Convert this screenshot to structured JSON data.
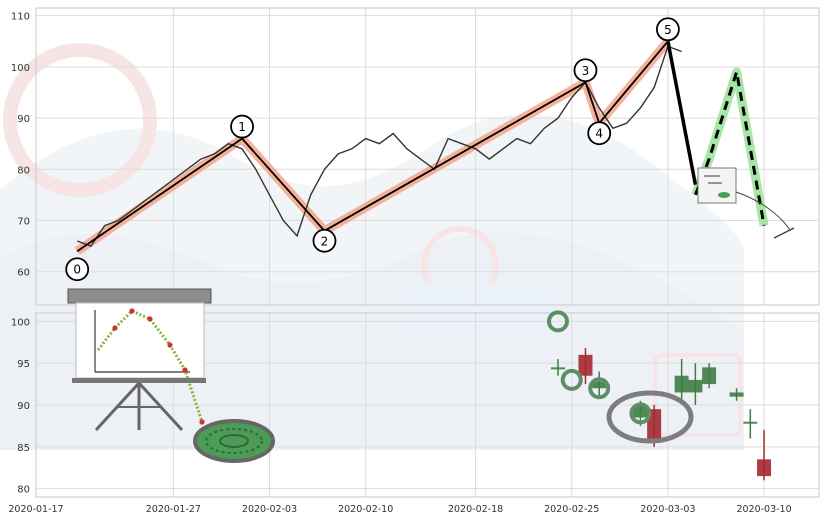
{
  "chart_data": [
    {
      "type": "line",
      "panel": "upper",
      "title": "",
      "xlabel": "",
      "ylabel": "",
      "ylim": [
        53.5,
        111.5
      ],
      "yticks": [
        60,
        70,
        80,
        90,
        100,
        110
      ],
      "grid": true,
      "series": [
        {
          "role": "price",
          "color": "#333333",
          "x": [
            "2020-01-20",
            "2020-01-21",
            "2020-01-22",
            "2020-01-23",
            "2020-01-24",
            "2020-01-25",
            "2020-01-26",
            "2020-01-27",
            "2020-01-28",
            "2020-01-29",
            "2020-01-30",
            "2020-01-31",
            "2020-02-01",
            "2020-02-02",
            "2020-02-03",
            "2020-02-04",
            "2020-02-05",
            "2020-02-06",
            "2020-02-07",
            "2020-02-08",
            "2020-02-09",
            "2020-02-10",
            "2020-02-11",
            "2020-02-12",
            "2020-02-13",
            "2020-02-14",
            "2020-02-15",
            "2020-02-16",
            "2020-02-17",
            "2020-02-18",
            "2020-02-19",
            "2020-02-20",
            "2020-02-21",
            "2020-02-22",
            "2020-02-23",
            "2020-02-24",
            "2020-02-25",
            "2020-02-26",
            "2020-02-27",
            "2020-02-28",
            "2020-02-29",
            "2020-03-01",
            "2020-03-02",
            "2020-03-03",
            "2020-03-04"
          ],
          "y": [
            66,
            65,
            69,
            70,
            72,
            74,
            76,
            78,
            80,
            82,
            83,
            85,
            84,
            80,
            75,
            70,
            67,
            75,
            80,
            83,
            84,
            86,
            85,
            87,
            84,
            82,
            80,
            86,
            85,
            84,
            82,
            84,
            86,
            85,
            88,
            90,
            94,
            97,
            92,
            88,
            89,
            92,
            96,
            104,
            103
          ]
        },
        {
          "role": "wave",
          "labels": [
            "0",
            "1",
            "2",
            "3",
            "4",
            "5"
          ],
          "x": [
            "2020-01-20",
            "2020-02-01",
            "2020-02-07",
            "2020-02-26",
            "2020-02-27",
            "2020-03-03"
          ],
          "y": [
            64,
            86,
            68,
            97,
            89,
            105
          ]
        },
        {
          "role": "wave-end",
          "x": [
            "2020-03-03",
            "2020-03-05"
          ],
          "y": [
            105,
            77
          ]
        },
        {
          "role": "projection",
          "x": [
            "2020-03-05",
            "2020-03-06",
            "2020-03-08",
            "2020-03-10"
          ],
          "y": [
            75,
            82,
            99,
            69
          ]
        }
      ]
    },
    {
      "type": "candlestick",
      "panel": "lower",
      "title": "",
      "xlabel": "",
      "ylabel": "",
      "ylim": [
        79,
        101
      ],
      "yticks": [
        80,
        85,
        90,
        95,
        100
      ],
      "grid": true,
      "x_tick_labels": [
        "2020-01-17",
        "2020-01-27",
        "2020-02-03",
        "2020-02-10",
        "2020-02-18",
        "2020-02-25",
        "2020-03-03",
        "2020-03-10"
      ],
      "candles": [
        {
          "date": "2020-02-24",
          "open": 94.5,
          "close": 94.5,
          "high": 95.5,
          "low": 93.5
        },
        {
          "date": "2020-02-26",
          "open": 96,
          "close": 93.5,
          "high": 96.8,
          "low": 92.5
        },
        {
          "date": "2020-02-27",
          "open": 92,
          "close": 92.8,
          "high": 94,
          "low": 91
        },
        {
          "date": "2020-03-01",
          "open": 88.5,
          "close": 90,
          "high": 90.5,
          "low": 87.5
        },
        {
          "date": "2020-03-02",
          "open": 89.5,
          "close": 85.5,
          "high": 90,
          "low": 85
        },
        {
          "date": "2020-03-04",
          "open": 91.5,
          "close": 93.5,
          "high": 95.5,
          "low": 90.5
        },
        {
          "date": "2020-03-05",
          "open": 91.5,
          "close": 93,
          "high": 95,
          "low": 90
        },
        {
          "date": "2020-03-06",
          "open": 92.5,
          "close": 94.5,
          "high": 95,
          "low": 92
        },
        {
          "date": "2020-03-08",
          "open": 91,
          "close": 91.5,
          "high": 92,
          "low": 90.5
        },
        {
          "date": "2020-03-09",
          "open": 88,
          "close": 88,
          "high": 89.5,
          "low": 86
        },
        {
          "date": "2020-03-10",
          "open": 83.5,
          "close": 81.5,
          "high": 87,
          "low": 81
        }
      ],
      "markers": [
        {
          "date": "2020-02-24",
          "y": 100
        },
        {
          "date": "2020-02-25",
          "y": 93
        },
        {
          "date": "2020-02-27",
          "y": 92
        },
        {
          "date": "2020-03-01",
          "y": 89
        }
      ]
    }
  ],
  "colors": {
    "up_candle": "#3e7d44",
    "down_candle": "#a3282e",
    "wave_highlight": "#f4a58a",
    "projection_highlight": "#9fe39b",
    "marker_ring": "#5e8f64"
  }
}
